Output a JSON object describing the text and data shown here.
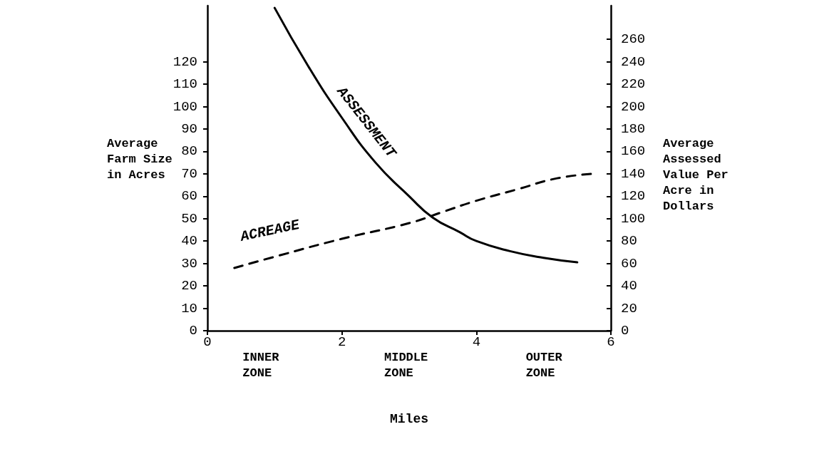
{
  "chart_data": {
    "type": "line",
    "xlabel": "Miles",
    "ylabel": "Average\nFarm Size\nin Acres",
    "y2label": "Average\nAssessed\nValue Per\nAcre in\nDollars",
    "xlim": [
      0,
      6
    ],
    "xticks": [
      0,
      2,
      4,
      6
    ],
    "ylim": [
      0,
      145
    ],
    "yticks": [
      0,
      10,
      20,
      30,
      40,
      50,
      60,
      70,
      80,
      90,
      100,
      110,
      120
    ],
    "y2lim": [
      0,
      290
    ],
    "y2ticks": [
      0,
      20,
      40,
      60,
      80,
      100,
      120,
      140,
      160,
      180,
      200,
      220,
      240,
      260
    ],
    "grid": false,
    "legend": false,
    "marker": "none",
    "annotations": [
      "INNER\nZONE",
      "MIDDLE\nZONE",
      "OUTER\nZONE"
    ],
    "series": [
      {
        "name": "ASSESSMENT",
        "color": "#000000",
        "axis": "y2",
        "line_style": "solid",
        "x": [
          1.0,
          1.5,
          2.0,
          2.5,
          3.0,
          3.35,
          3.75,
          4.0,
          4.5,
          5.0,
          5.5
        ],
        "values": [
          288,
          236,
          190,
          150,
          120,
          101,
          88,
          80,
          71,
          65,
          61
        ]
      },
      {
        "name": "ACREAGE",
        "color": "#000000",
        "axis": "y",
        "line_style": "dashed",
        "x": [
          0.4,
          1.0,
          2.0,
          3.0,
          3.5,
          4.0,
          4.6,
          5.2,
          5.75
        ],
        "values": [
          28,
          33,
          41,
          48,
          53,
          58,
          63,
          68,
          70
        ]
      }
    ]
  }
}
